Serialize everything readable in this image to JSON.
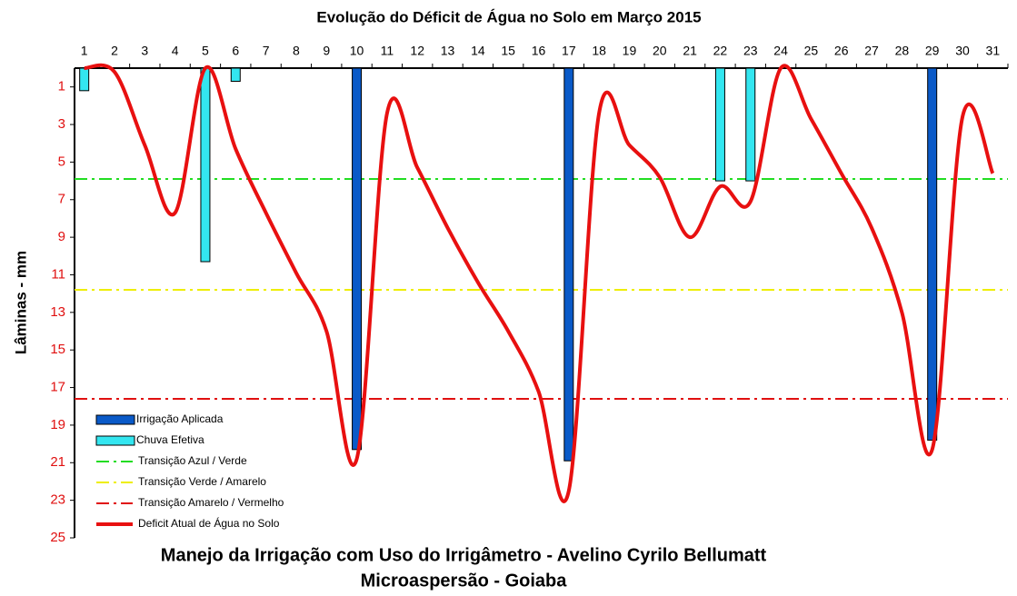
{
  "chart_data": {
    "type": "line",
    "title": "Evolução do Déficit de Água no Solo em Março 2015",
    "subtitle": [
      "Manejo da Irrigação com Uso do Irrigâmetro - Avelino Cyrilo Bellumatt",
      "Microaspersão - Goiaba"
    ],
    "y_label": "Lâminas - mm",
    "categories": [
      "1",
      "2",
      "3",
      "4",
      "5",
      "6",
      "7",
      "8",
      "9",
      "10",
      "11",
      "12",
      "13",
      "14",
      "15",
      "16",
      "17",
      "18",
      "19",
      "20",
      "21",
      "22",
      "23",
      "24",
      "25",
      "26",
      "27",
      "28",
      "29",
      "30",
      "31"
    ],
    "ylim": [
      0,
      25
    ],
    "y_inverted": true,
    "yticks": [
      1,
      3,
      5,
      7,
      9,
      11,
      13,
      15,
      17,
      19,
      21,
      23,
      25
    ],
    "series": [
      {
        "name": "Irrigação Aplicada",
        "type": "bar",
        "color": "#0a5ac8",
        "values": [
          null,
          null,
          null,
          null,
          null,
          null,
          null,
          null,
          null,
          20.3,
          null,
          null,
          null,
          null,
          null,
          null,
          20.9,
          null,
          null,
          null,
          null,
          null,
          null,
          null,
          null,
          null,
          null,
          null,
          19.8,
          null,
          null
        ]
      },
      {
        "name": "Chuva Efetiva",
        "type": "bar",
        "color": "#33e6f0",
        "values": [
          1.2,
          null,
          null,
          null,
          10.3,
          0.7,
          null,
          null,
          null,
          null,
          null,
          null,
          null,
          null,
          null,
          null,
          null,
          null,
          null,
          null,
          null,
          6.0,
          6.0,
          null,
          null,
          null,
          null,
          null,
          null,
          null,
          null
        ]
      },
      {
        "name": "Transição Azul / Verde",
        "type": "hline",
        "color": "#22dd22",
        "value": 5.9
      },
      {
        "name": "Transição Verde / Amarelo",
        "type": "hline",
        "color": "#eeee00",
        "value": 11.8
      },
      {
        "name": "Transição Amarelo / Vermelho",
        "type": "hline",
        "color": "#e01010",
        "value": 17.6
      },
      {
        "name": "Deficit Atual de Água no Solo",
        "type": "line",
        "color": "#e81010",
        "values": [
          0,
          0.2,
          4.1,
          7.7,
          0,
          4.3,
          7.7,
          10.9,
          14,
          20.8,
          2.4,
          5.3,
          8.5,
          11.4,
          14,
          17.2,
          22.5,
          2.4,
          4.1,
          5.8,
          9,
          6.3,
          7.1,
          0,
          2.7,
          5.6,
          8.5,
          13,
          20.3,
          2.6,
          5.6
        ]
      }
    ]
  }
}
